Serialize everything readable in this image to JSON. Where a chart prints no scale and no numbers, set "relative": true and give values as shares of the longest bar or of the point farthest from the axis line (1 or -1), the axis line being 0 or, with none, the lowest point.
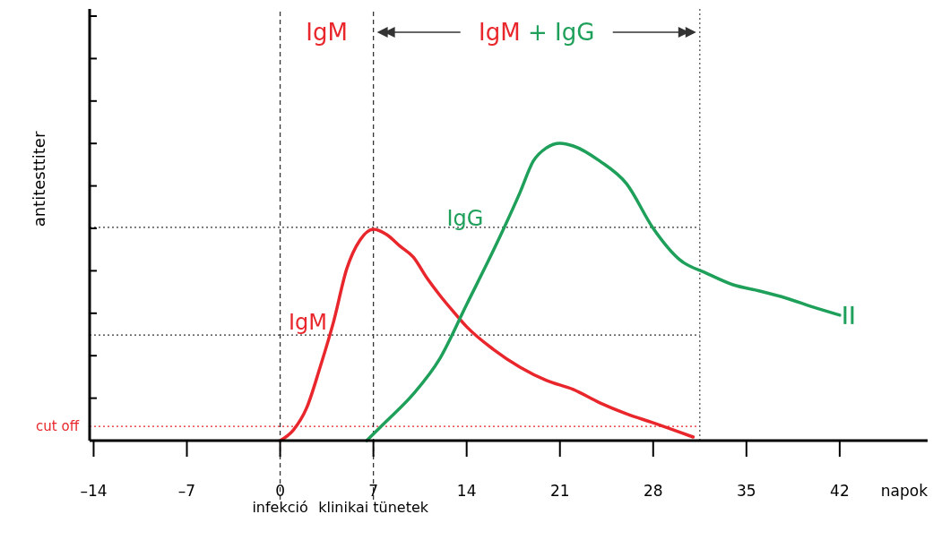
{
  "chart_data": {
    "type": "line",
    "relative": true,
    "xlabel": "napok",
    "ylabel": "antitesttiter",
    "xlim": [
      -14.3,
      48.6
    ],
    "xticks": [
      {
        "value": -14,
        "label": "–14"
      },
      {
        "value": -7,
        "label": "–7"
      },
      0,
      7,
      14,
      21,
      28,
      35,
      42
    ],
    "series": [
      {
        "name": "IgM",
        "color": "#e8262b",
        "x": [
          0,
          1,
          2,
          3,
          4,
          5,
          6,
          7,
          8,
          9,
          10,
          11,
          12,
          13,
          14,
          16,
          18,
          20,
          22,
          24,
          26,
          28,
          31
        ],
        "values": [
          0,
          0.036,
          0.111,
          0.247,
          0.398,
          0.578,
          0.675,
          0.711,
          0.693,
          0.654,
          0.617,
          0.548,
          0.488,
          0.434,
          0.383,
          0.307,
          0.247,
          0.202,
          0.172,
          0.127,
          0.09,
          0.06,
          0.012
        ]
      },
      {
        "name": "IgG",
        "color": "#1fa05a",
        "x": [
          6.5,
          8,
          10,
          12,
          14,
          16,
          18,
          19,
          20,
          21,
          22,
          24,
          26,
          28,
          30,
          32,
          34,
          36,
          38,
          40,
          42
        ],
        "values": [
          0,
          0.066,
          0.157,
          0.277,
          0.458,
          0.639,
          0.834,
          0.94,
          0.985,
          1,
          0.991,
          0.94,
          0.864,
          0.714,
          0.608,
          0.563,
          0.524,
          0.503,
          0.479,
          0.449,
          0.422
        ]
      }
    ],
    "ref_lines": [
      {
        "axis": "x",
        "value": 0,
        "label": "infekció",
        "color": "#333333",
        "line_style": "dashed"
      },
      {
        "axis": "x",
        "value": 7,
        "label": "klinikai tünetek",
        "color": "#333333",
        "line_style": "dashed"
      },
      {
        "axis": "x",
        "value": 31.5,
        "color": "#555555",
        "line_style": "dotted"
      },
      {
        "axis": "y",
        "value": 0.717,
        "color": "#333333",
        "line_style": "dotted"
      },
      {
        "axis": "y",
        "value": 0.355,
        "color": "#333333",
        "line_style": "dotted"
      },
      {
        "axis": "y",
        "value": 0.048,
        "label": "cut off",
        "color": "#e8262b",
        "line_style": "dotted"
      }
    ],
    "annotations": [
      "IgM",
      "IgM + IgG"
    ],
    "marker": "none",
    "line_style": "solid"
  }
}
